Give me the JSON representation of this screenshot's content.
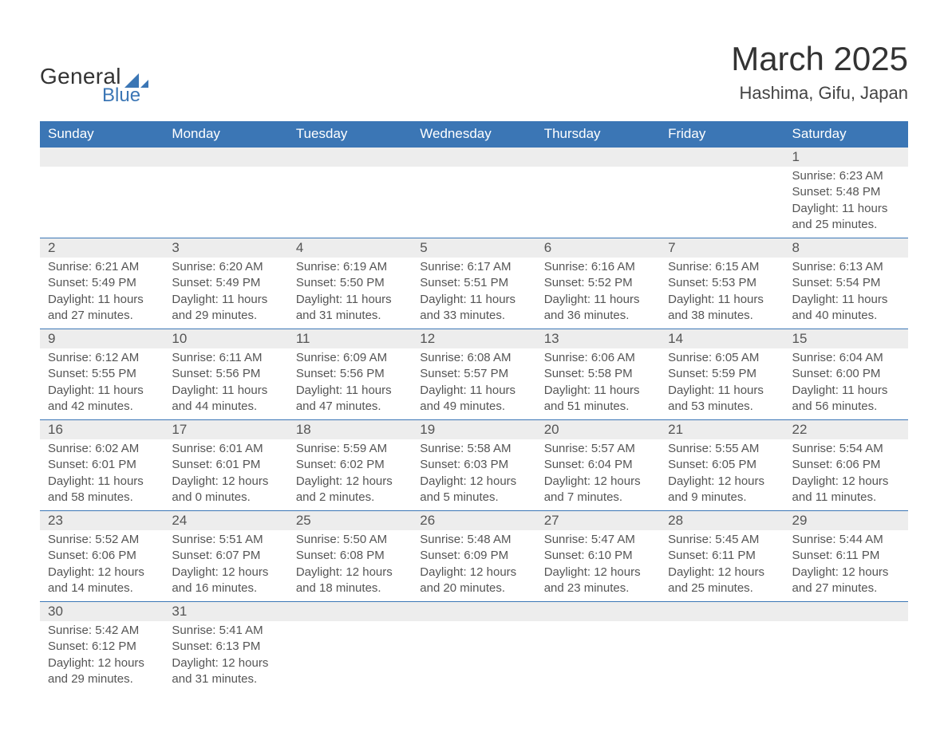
{
  "colors": {
    "header_bg": "#3b76b5",
    "header_text": "#ffffff",
    "daynum_bg": "#ededed",
    "row_border": "#3b76b5",
    "text": "#555555",
    "title": "#333333",
    "logo_text": "#333333",
    "logo_blue": "#3b76b5"
  },
  "typography": {
    "title_fontsize": 42,
    "location_fontsize": 22,
    "header_fontsize": 17,
    "daynum_fontsize": 17,
    "cell_fontsize": 15
  },
  "logo": {
    "line1": "General",
    "line2": "Blue"
  },
  "title": "March 2025",
  "location": "Hashima, Gifu, Japan",
  "day_headers": [
    "Sunday",
    "Monday",
    "Tuesday",
    "Wednesday",
    "Thursday",
    "Friday",
    "Saturday"
  ],
  "weeks": [
    [
      null,
      null,
      null,
      null,
      null,
      null,
      {
        "n": "1",
        "sunrise": "Sunrise: 6:23 AM",
        "sunset": "Sunset: 5:48 PM",
        "dl1": "Daylight: 11 hours",
        "dl2": "and 25 minutes."
      }
    ],
    [
      {
        "n": "2",
        "sunrise": "Sunrise: 6:21 AM",
        "sunset": "Sunset: 5:49 PM",
        "dl1": "Daylight: 11 hours",
        "dl2": "and 27 minutes."
      },
      {
        "n": "3",
        "sunrise": "Sunrise: 6:20 AM",
        "sunset": "Sunset: 5:49 PM",
        "dl1": "Daylight: 11 hours",
        "dl2": "and 29 minutes."
      },
      {
        "n": "4",
        "sunrise": "Sunrise: 6:19 AM",
        "sunset": "Sunset: 5:50 PM",
        "dl1": "Daylight: 11 hours",
        "dl2": "and 31 minutes."
      },
      {
        "n": "5",
        "sunrise": "Sunrise: 6:17 AM",
        "sunset": "Sunset: 5:51 PM",
        "dl1": "Daylight: 11 hours",
        "dl2": "and 33 minutes."
      },
      {
        "n": "6",
        "sunrise": "Sunrise: 6:16 AM",
        "sunset": "Sunset: 5:52 PM",
        "dl1": "Daylight: 11 hours",
        "dl2": "and 36 minutes."
      },
      {
        "n": "7",
        "sunrise": "Sunrise: 6:15 AM",
        "sunset": "Sunset: 5:53 PM",
        "dl1": "Daylight: 11 hours",
        "dl2": "and 38 minutes."
      },
      {
        "n": "8",
        "sunrise": "Sunrise: 6:13 AM",
        "sunset": "Sunset: 5:54 PM",
        "dl1": "Daylight: 11 hours",
        "dl2": "and 40 minutes."
      }
    ],
    [
      {
        "n": "9",
        "sunrise": "Sunrise: 6:12 AM",
        "sunset": "Sunset: 5:55 PM",
        "dl1": "Daylight: 11 hours",
        "dl2": "and 42 minutes."
      },
      {
        "n": "10",
        "sunrise": "Sunrise: 6:11 AM",
        "sunset": "Sunset: 5:56 PM",
        "dl1": "Daylight: 11 hours",
        "dl2": "and 44 minutes."
      },
      {
        "n": "11",
        "sunrise": "Sunrise: 6:09 AM",
        "sunset": "Sunset: 5:56 PM",
        "dl1": "Daylight: 11 hours",
        "dl2": "and 47 minutes."
      },
      {
        "n": "12",
        "sunrise": "Sunrise: 6:08 AM",
        "sunset": "Sunset: 5:57 PM",
        "dl1": "Daylight: 11 hours",
        "dl2": "and 49 minutes."
      },
      {
        "n": "13",
        "sunrise": "Sunrise: 6:06 AM",
        "sunset": "Sunset: 5:58 PM",
        "dl1": "Daylight: 11 hours",
        "dl2": "and 51 minutes."
      },
      {
        "n": "14",
        "sunrise": "Sunrise: 6:05 AM",
        "sunset": "Sunset: 5:59 PM",
        "dl1": "Daylight: 11 hours",
        "dl2": "and 53 minutes."
      },
      {
        "n": "15",
        "sunrise": "Sunrise: 6:04 AM",
        "sunset": "Sunset: 6:00 PM",
        "dl1": "Daylight: 11 hours",
        "dl2": "and 56 minutes."
      }
    ],
    [
      {
        "n": "16",
        "sunrise": "Sunrise: 6:02 AM",
        "sunset": "Sunset: 6:01 PM",
        "dl1": "Daylight: 11 hours",
        "dl2": "and 58 minutes."
      },
      {
        "n": "17",
        "sunrise": "Sunrise: 6:01 AM",
        "sunset": "Sunset: 6:01 PM",
        "dl1": "Daylight: 12 hours",
        "dl2": "and 0 minutes."
      },
      {
        "n": "18",
        "sunrise": "Sunrise: 5:59 AM",
        "sunset": "Sunset: 6:02 PM",
        "dl1": "Daylight: 12 hours",
        "dl2": "and 2 minutes."
      },
      {
        "n": "19",
        "sunrise": "Sunrise: 5:58 AM",
        "sunset": "Sunset: 6:03 PM",
        "dl1": "Daylight: 12 hours",
        "dl2": "and 5 minutes."
      },
      {
        "n": "20",
        "sunrise": "Sunrise: 5:57 AM",
        "sunset": "Sunset: 6:04 PM",
        "dl1": "Daylight: 12 hours",
        "dl2": "and 7 minutes."
      },
      {
        "n": "21",
        "sunrise": "Sunrise: 5:55 AM",
        "sunset": "Sunset: 6:05 PM",
        "dl1": "Daylight: 12 hours",
        "dl2": "and 9 minutes."
      },
      {
        "n": "22",
        "sunrise": "Sunrise: 5:54 AM",
        "sunset": "Sunset: 6:06 PM",
        "dl1": "Daylight: 12 hours",
        "dl2": "and 11 minutes."
      }
    ],
    [
      {
        "n": "23",
        "sunrise": "Sunrise: 5:52 AM",
        "sunset": "Sunset: 6:06 PM",
        "dl1": "Daylight: 12 hours",
        "dl2": "and 14 minutes."
      },
      {
        "n": "24",
        "sunrise": "Sunrise: 5:51 AM",
        "sunset": "Sunset: 6:07 PM",
        "dl1": "Daylight: 12 hours",
        "dl2": "and 16 minutes."
      },
      {
        "n": "25",
        "sunrise": "Sunrise: 5:50 AM",
        "sunset": "Sunset: 6:08 PM",
        "dl1": "Daylight: 12 hours",
        "dl2": "and 18 minutes."
      },
      {
        "n": "26",
        "sunrise": "Sunrise: 5:48 AM",
        "sunset": "Sunset: 6:09 PM",
        "dl1": "Daylight: 12 hours",
        "dl2": "and 20 minutes."
      },
      {
        "n": "27",
        "sunrise": "Sunrise: 5:47 AM",
        "sunset": "Sunset: 6:10 PM",
        "dl1": "Daylight: 12 hours",
        "dl2": "and 23 minutes."
      },
      {
        "n": "28",
        "sunrise": "Sunrise: 5:45 AM",
        "sunset": "Sunset: 6:11 PM",
        "dl1": "Daylight: 12 hours",
        "dl2": "and 25 minutes."
      },
      {
        "n": "29",
        "sunrise": "Sunrise: 5:44 AM",
        "sunset": "Sunset: 6:11 PM",
        "dl1": "Daylight: 12 hours",
        "dl2": "and 27 minutes."
      }
    ],
    [
      {
        "n": "30",
        "sunrise": "Sunrise: 5:42 AM",
        "sunset": "Sunset: 6:12 PM",
        "dl1": "Daylight: 12 hours",
        "dl2": "and 29 minutes."
      },
      {
        "n": "31",
        "sunrise": "Sunrise: 5:41 AM",
        "sunset": "Sunset: 6:13 PM",
        "dl1": "Daylight: 12 hours",
        "dl2": "and 31 minutes."
      },
      null,
      null,
      null,
      null,
      null
    ]
  ]
}
